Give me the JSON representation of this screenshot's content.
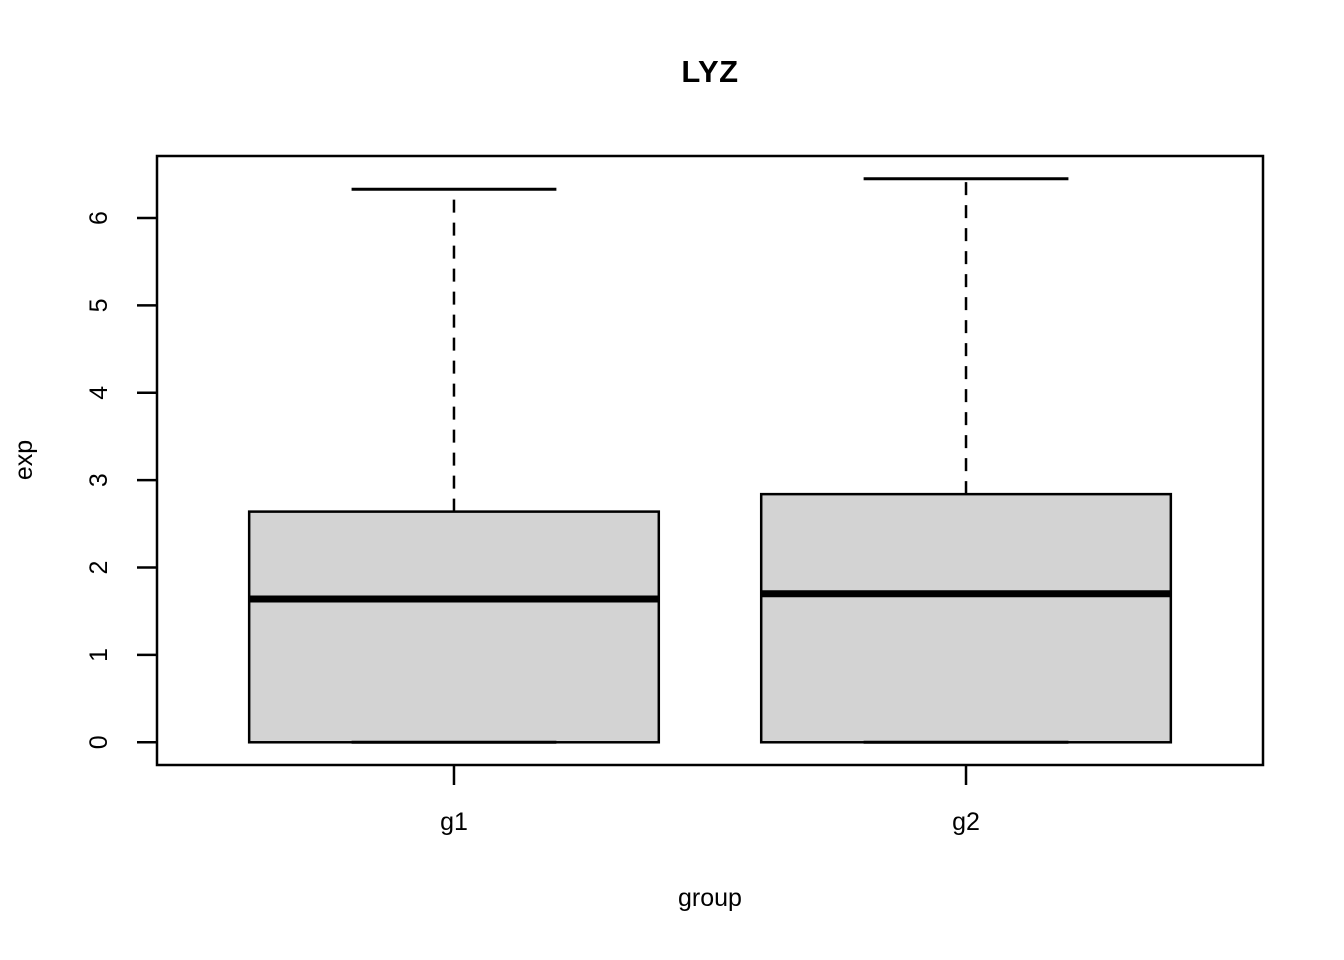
{
  "chart_data": {
    "type": "boxplot",
    "title": "LYZ",
    "xlabel": "group",
    "ylabel": "exp",
    "categories": [
      "g1",
      "g2"
    ],
    "series": [
      {
        "name": "g1",
        "min": 0,
        "q1": 0,
        "median": 1.64,
        "q3": 2.64,
        "max": 6.33
      },
      {
        "name": "g2",
        "min": 0,
        "q1": 0,
        "median": 1.7,
        "q3": 2.84,
        "max": 6.45
      }
    ],
    "x_positions": [
      1,
      2
    ],
    "xlim": [
      0.42,
      2.58
    ],
    "ylim": [
      -0.26,
      6.71
    ],
    "y_ticks": [
      0,
      1,
      2,
      3,
      4,
      5,
      6
    ],
    "box_width": 0.8,
    "staple_width": 0.4,
    "grid": "off",
    "legend": "none",
    "colors": {
      "box_fill": "#d3d3d3",
      "line": "#000000",
      "background": "#ffffff"
    }
  }
}
